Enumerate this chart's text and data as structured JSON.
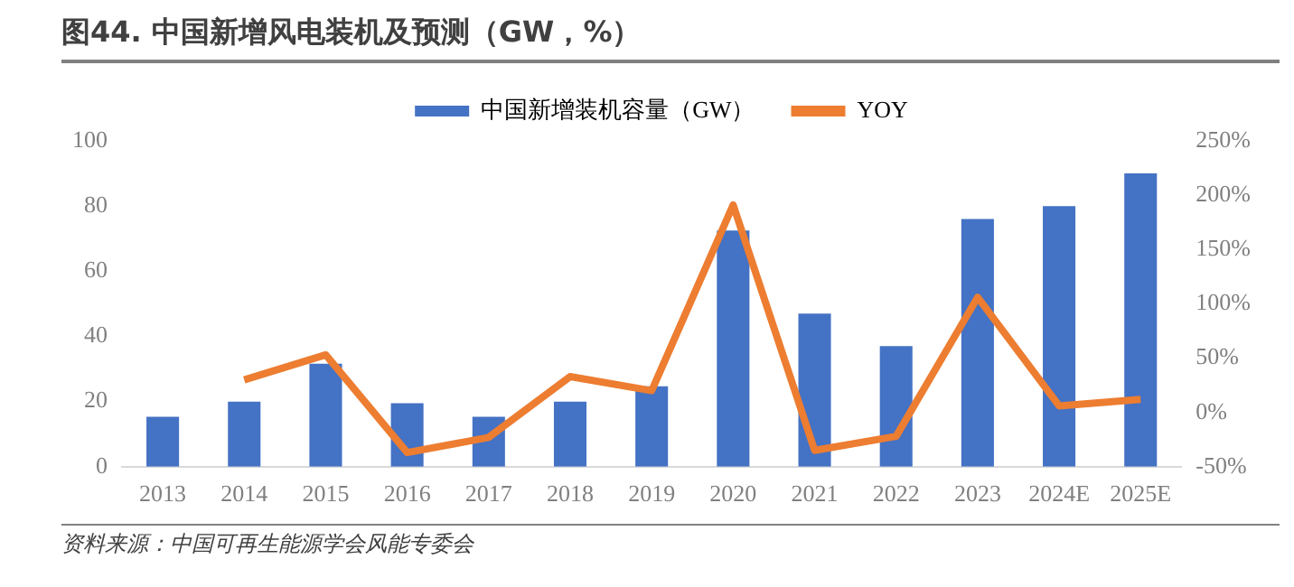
{
  "chart_data": {
    "type": "bar",
    "title": "图44. 中国新增风电装机及预测（GW，%）",
    "categories": [
      "2013",
      "2014",
      "2015",
      "2016",
      "2017",
      "2018",
      "2019",
      "2020",
      "2021",
      "2022",
      "2023",
      "2024E",
      "2025E"
    ],
    "series": [
      {
        "name": "中国新增装机容量（GW）",
        "color": "#4472c4",
        "values": [
          15.3,
          20,
          31.6,
          19.5,
          15.3,
          20,
          24.7,
          72.5,
          47,
          37,
          76,
          80,
          90
        ]
      },
      {
        "name": "YOY",
        "type": "line",
        "axis": "y2",
        "color": "#ed7d31",
        "values": [
          null,
          30,
          53,
          -37,
          -23,
          33,
          20,
          191,
          -35,
          -22,
          106,
          6,
          12
        ]
      }
    ],
    "ylim": [
      0,
      100
    ],
    "yticks": [
      0,
      20,
      40,
      60,
      80,
      100
    ],
    "y2lim": [
      -50,
      250
    ],
    "y2ticks": [
      {
        "value": -50,
        "label": "-50%"
      },
      {
        "value": 0,
        "label": "0%"
      },
      {
        "value": 50,
        "label": "50%"
      },
      {
        "value": 100,
        "label": "100%"
      },
      {
        "value": 150,
        "label": "150%"
      },
      {
        "value": 200,
        "label": "200%"
      },
      {
        "value": 250,
        "label": "250%"
      }
    ],
    "grid": false,
    "legend": "top",
    "marker": "none",
    "annotations": [
      "资料来源：中国可再生能源学会风能专委会"
    ]
  }
}
